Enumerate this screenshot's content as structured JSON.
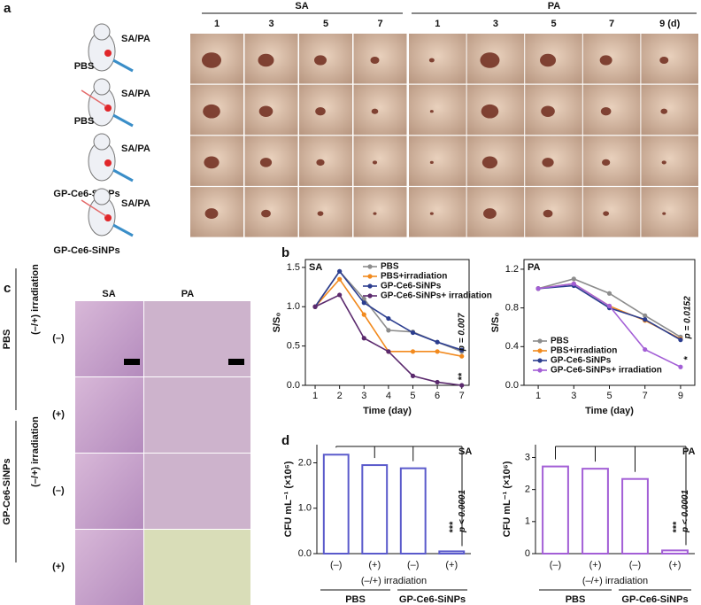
{
  "panel_labels": [
    "a",
    "b",
    "c",
    "d"
  ],
  "panel_a": {
    "headers": [
      "SA",
      "PA"
    ],
    "days_sa": [
      "1",
      "3",
      "5",
      "7"
    ],
    "days_pa": [
      "1",
      "3",
      "5",
      "7",
      "9 (d)"
    ],
    "groups": [
      {
        "treatment": "PBS",
        "infection": "SA/PA"
      },
      {
        "treatment": "PBS",
        "infection": "SA/PA"
      },
      {
        "treatment": "GP-Ce6-SiNPs",
        "infection": "SA/PA"
      },
      {
        "treatment": "GP-Ce6-SiNPs",
        "infection": "SA/PA"
      }
    ]
  },
  "panel_c": {
    "columns": [
      "SA",
      "PA"
    ],
    "groups": [
      "PBS",
      "GP-Ce6-SiNPs"
    ],
    "irradiation": "(–/+) irradiation",
    "rows": [
      "(–)",
      "(+)",
      "(–)",
      "(+)"
    ]
  },
  "chart_data": [
    {
      "type": "line",
      "tag": "SA",
      "x_label": "Time (day)",
      "y_label": "S/S₀",
      "x": [
        1,
        2,
        3,
        4,
        5,
        6,
        7
      ],
      "xlim": [
        0.6,
        7.3
      ],
      "xticks": [
        1,
        2,
        3,
        4,
        5,
        6,
        7
      ],
      "ylim": [
        0,
        1.6
      ],
      "yticks": [
        {
          "value": 0,
          "label": "0.0"
        },
        0.5,
        {
          "value": 1,
          "label": "1.0"
        },
        1.5
      ],
      "legend": "upper right",
      "series": [
        {
          "name": "PBS",
          "color": "#8c8c8c",
          "values": [
            1,
            1.45,
            1.1,
            0.7,
            0.68,
            0.55,
            0.43
          ]
        },
        {
          "name": "PBS+irradiation",
          "color": "#f28a1e",
          "values": [
            1,
            1.35,
            0.9,
            0.43,
            0.43,
            0.43,
            0.37
          ]
        },
        {
          "name": "GP-Ce6-SiNPs",
          "color": "#2b3d8f",
          "values": [
            1,
            1.45,
            1.05,
            0.85,
            0.67,
            0.55,
            0.45
          ]
        },
        {
          "name": "GP-Ce6-SiNPs+ irradiation",
          "color": "#5b2a6e",
          "values": [
            1,
            1.15,
            0.6,
            0.43,
            0.12,
            0.04,
            0
          ]
        }
      ],
      "annotations": [
        "p = 0.007",
        "**"
      ]
    },
    {
      "type": "line",
      "tag": "PA",
      "x_label": "Time (day)",
      "y_label": "S/S₀",
      "x": [
        1,
        3,
        5,
        7,
        9
      ],
      "xlim": [
        0.2,
        9.8
      ],
      "xticks": [
        1,
        3,
        5,
        7,
        9
      ],
      "ylim": [
        0,
        1.3
      ],
      "yticks": [
        {
          "value": 0,
          "label": "0.0"
        },
        0.4,
        0.8,
        1.2
      ],
      "legend": "lower left",
      "series": [
        {
          "name": "PBS",
          "color": "#8c8c8c",
          "values": [
            1,
            1.1,
            0.95,
            0.72,
            0.5
          ]
        },
        {
          "name": "PBS+irradiation",
          "color": "#f28a1e",
          "values": [
            1,
            1.05,
            0.82,
            0.67,
            0.48
          ]
        },
        {
          "name": "GP-Ce6-SiNPs",
          "color": "#2b3d8f",
          "values": [
            1,
            1.03,
            0.8,
            0.68,
            0.47
          ]
        },
        {
          "name": "GP-Ce6-SiNPs+ irradiation",
          "color": "#a35fd6",
          "values": [
            1,
            1.05,
            0.82,
            0.37,
            0.19
          ]
        }
      ],
      "annotations": [
        "p = 0.0152",
        "*"
      ]
    },
    {
      "type": "bar",
      "tag": "SA",
      "y_label": "CFU mL⁻¹ (×10⁶)",
      "color": "#5a5acb",
      "categories": [
        "(–)",
        "(+)",
        "(–)",
        "(+)"
      ],
      "values": [
        2.18,
        1.95,
        1.88,
        0.05
      ],
      "ylim": [
        0,
        2.4
      ],
      "yticks": [
        {
          "value": 0,
          "label": "0.0"
        },
        {
          "value": 1,
          "label": "1.0"
        },
        {
          "value": 2,
          "label": "2.0"
        }
      ],
      "x_group_title": "(–/+) irradiation",
      "groups": [
        "PBS",
        "GP-Ce6-SiNPs"
      ],
      "annotations": [
        "***",
        "p < 0.0001"
      ]
    },
    {
      "type": "bar",
      "tag": "PA",
      "y_label": "CFU mL⁻¹ (×10⁶)",
      "color": "#a35fd6",
      "categories": [
        "(–)",
        "(+)",
        "(–)",
        "(+)"
      ],
      "values": [
        2.72,
        2.65,
        2.33,
        0.1
      ],
      "ylim": [
        0,
        3.4
      ],
      "yticks": [
        0,
        1,
        2,
        3
      ],
      "x_group_title": "(–/+) irradiation",
      "groups": [
        "PBS",
        "GP-Ce6-SiNPs"
      ],
      "annotations": [
        "***",
        "p < 0.0001"
      ]
    }
  ]
}
